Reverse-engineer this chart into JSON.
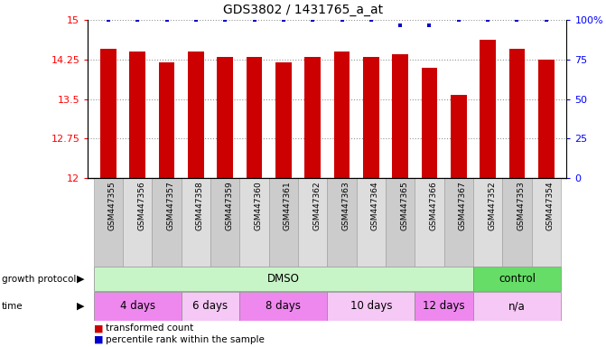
{
  "title": "GDS3802 / 1431765_a_at",
  "samples": [
    "GSM447355",
    "GSM447356",
    "GSM447357",
    "GSM447358",
    "GSM447359",
    "GSM447360",
    "GSM447361",
    "GSM447362",
    "GSM447363",
    "GSM447364",
    "GSM447365",
    "GSM447366",
    "GSM447367",
    "GSM447352",
    "GSM447353",
    "GSM447354"
  ],
  "bar_values": [
    14.45,
    14.4,
    14.2,
    14.4,
    14.3,
    14.3,
    14.2,
    14.3,
    14.4,
    14.3,
    14.35,
    14.1,
    13.58,
    14.62,
    14.45,
    14.25
  ],
  "percentile_values": [
    100,
    100,
    100,
    100,
    100,
    100,
    100,
    100,
    100,
    100,
    97,
    97,
    100,
    100,
    100,
    100
  ],
  "bar_color": "#cc0000",
  "percentile_color": "#0000cc",
  "ylim_left": [
    12,
    15
  ],
  "ylim_right": [
    0,
    100
  ],
  "yticks_left": [
    12,
    12.75,
    13.5,
    14.25,
    15
  ],
  "yticks_right": [
    0,
    25,
    50,
    75,
    100
  ],
  "protocol_rows": [
    {
      "label": "DMSO",
      "start": 0,
      "end": 13,
      "color": "#c8f5c8"
    },
    {
      "label": "control",
      "start": 13,
      "end": 16,
      "color": "#66dd66"
    }
  ],
  "time_rows": [
    {
      "label": "4 days",
      "start": 0,
      "end": 3,
      "color": "#ee88ee"
    },
    {
      "label": "6 days",
      "start": 3,
      "end": 5,
      "color": "#f5c8f5"
    },
    {
      "label": "8 days",
      "start": 5,
      "end": 8,
      "color": "#ee88ee"
    },
    {
      "label": "10 days",
      "start": 8,
      "end": 11,
      "color": "#f5c8f5"
    },
    {
      "label": "12 days",
      "start": 11,
      "end": 13,
      "color": "#ee88ee"
    },
    {
      "label": "n/a",
      "start": 13,
      "end": 16,
      "color": "#f5c8f5"
    }
  ],
  "legend_red_label": "transformed count",
  "legend_blue_label": "percentile rank within the sample",
  "growth_protocol_label": "growth protocol",
  "time_label": "time",
  "background_color": "#ffffff",
  "grid_color": "#888888",
  "col_colors": [
    "#cccccc",
    "#dddddd"
  ]
}
